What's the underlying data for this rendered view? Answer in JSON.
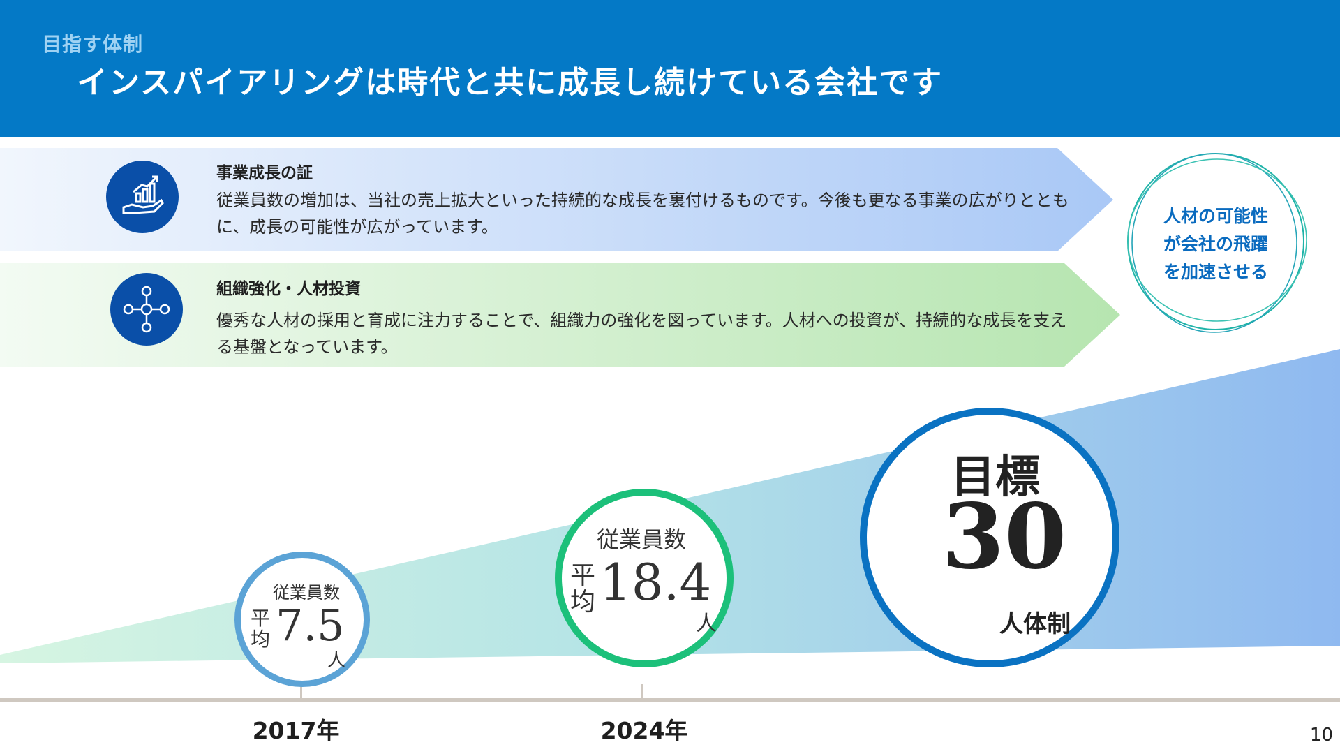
{
  "header": {
    "subtitle": "目指す体制",
    "title": "インスパイアリングは時代と共に成長し続けている会社です"
  },
  "banners": [
    {
      "heading": "事業成長の証",
      "body": "従業員数の増加は、当社の売上拡大といった持続的な成長を裏付けるものです。今後も更なる事業の広がりとともに、成長の可能性が広がっています。",
      "icon": "growth-chart-hand-icon"
    },
    {
      "heading": "組織強化・人材投資",
      "body": "優秀な人材の採用と育成に注力することで、組織力の強化を図っています。人材への投資が、持続的な成長を支える基盤となっています。",
      "icon": "people-network-icon"
    }
  ],
  "badge": {
    "lines": [
      "人材の可能性",
      "が会社の飛躍",
      "を加速させる"
    ]
  },
  "milestones": [
    {
      "year": "2017年",
      "caption": "従業員数",
      "prefix": "平均",
      "value": "7.5",
      "unit": "人",
      "color": "#5ba3d6"
    },
    {
      "year": "2024年",
      "caption": "従業員数",
      "prefix": "平均",
      "value": "18.4",
      "unit": "人",
      "color": "#1cc07a"
    }
  ],
  "target": {
    "label": "目標",
    "value": "30",
    "unit": "人体制",
    "color": "#0a72c2"
  },
  "page_number": "10"
}
